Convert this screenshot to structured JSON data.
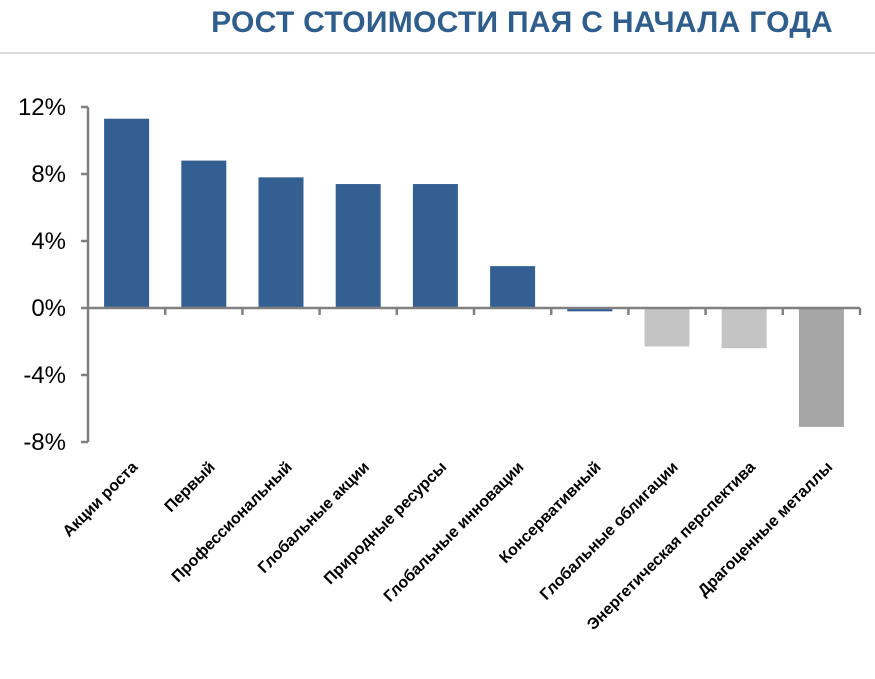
{
  "header": {
    "title": "РОСТ СТОИМОСТИ ПАЯ С НАЧАЛА ГОДА"
  },
  "chart_data": {
    "type": "bar",
    "title": "РОСТ СТОИМОСТИ ПАЯ С НАЧАЛА ГОДА",
    "categories": [
      "Акции роста",
      "Первый",
      "Профессиональный",
      "Глобальные акции",
      "Природные ресурсы",
      "Глобальные инновации",
      "Консервативный",
      "Глобальные облигации",
      "Энергетическая перспектива",
      "Драгоценные  металлы"
    ],
    "values": [
      11.3,
      8.8,
      7.8,
      7.4,
      7.4,
      2.5,
      -0.2,
      -2.3,
      -2.4,
      -7.1
    ],
    "unit": "%",
    "ylim": [
      -8,
      12
    ],
    "yticks": [
      12,
      8,
      4,
      0,
      -4,
      -8
    ],
    "ytick_labels": [
      "12%",
      "8%",
      "4%",
      "0%",
      "-4%",
      "-8%"
    ],
    "bar_colors": [
      "#335f92",
      "#335f92",
      "#335f92",
      "#335f92",
      "#335f92",
      "#335f92",
      "#335f92",
      "#c4c4c4",
      "#c4c4c4",
      "#a6a6a6"
    ],
    "xlabel": "",
    "ylabel": "",
    "grid": false,
    "legend": "none"
  }
}
